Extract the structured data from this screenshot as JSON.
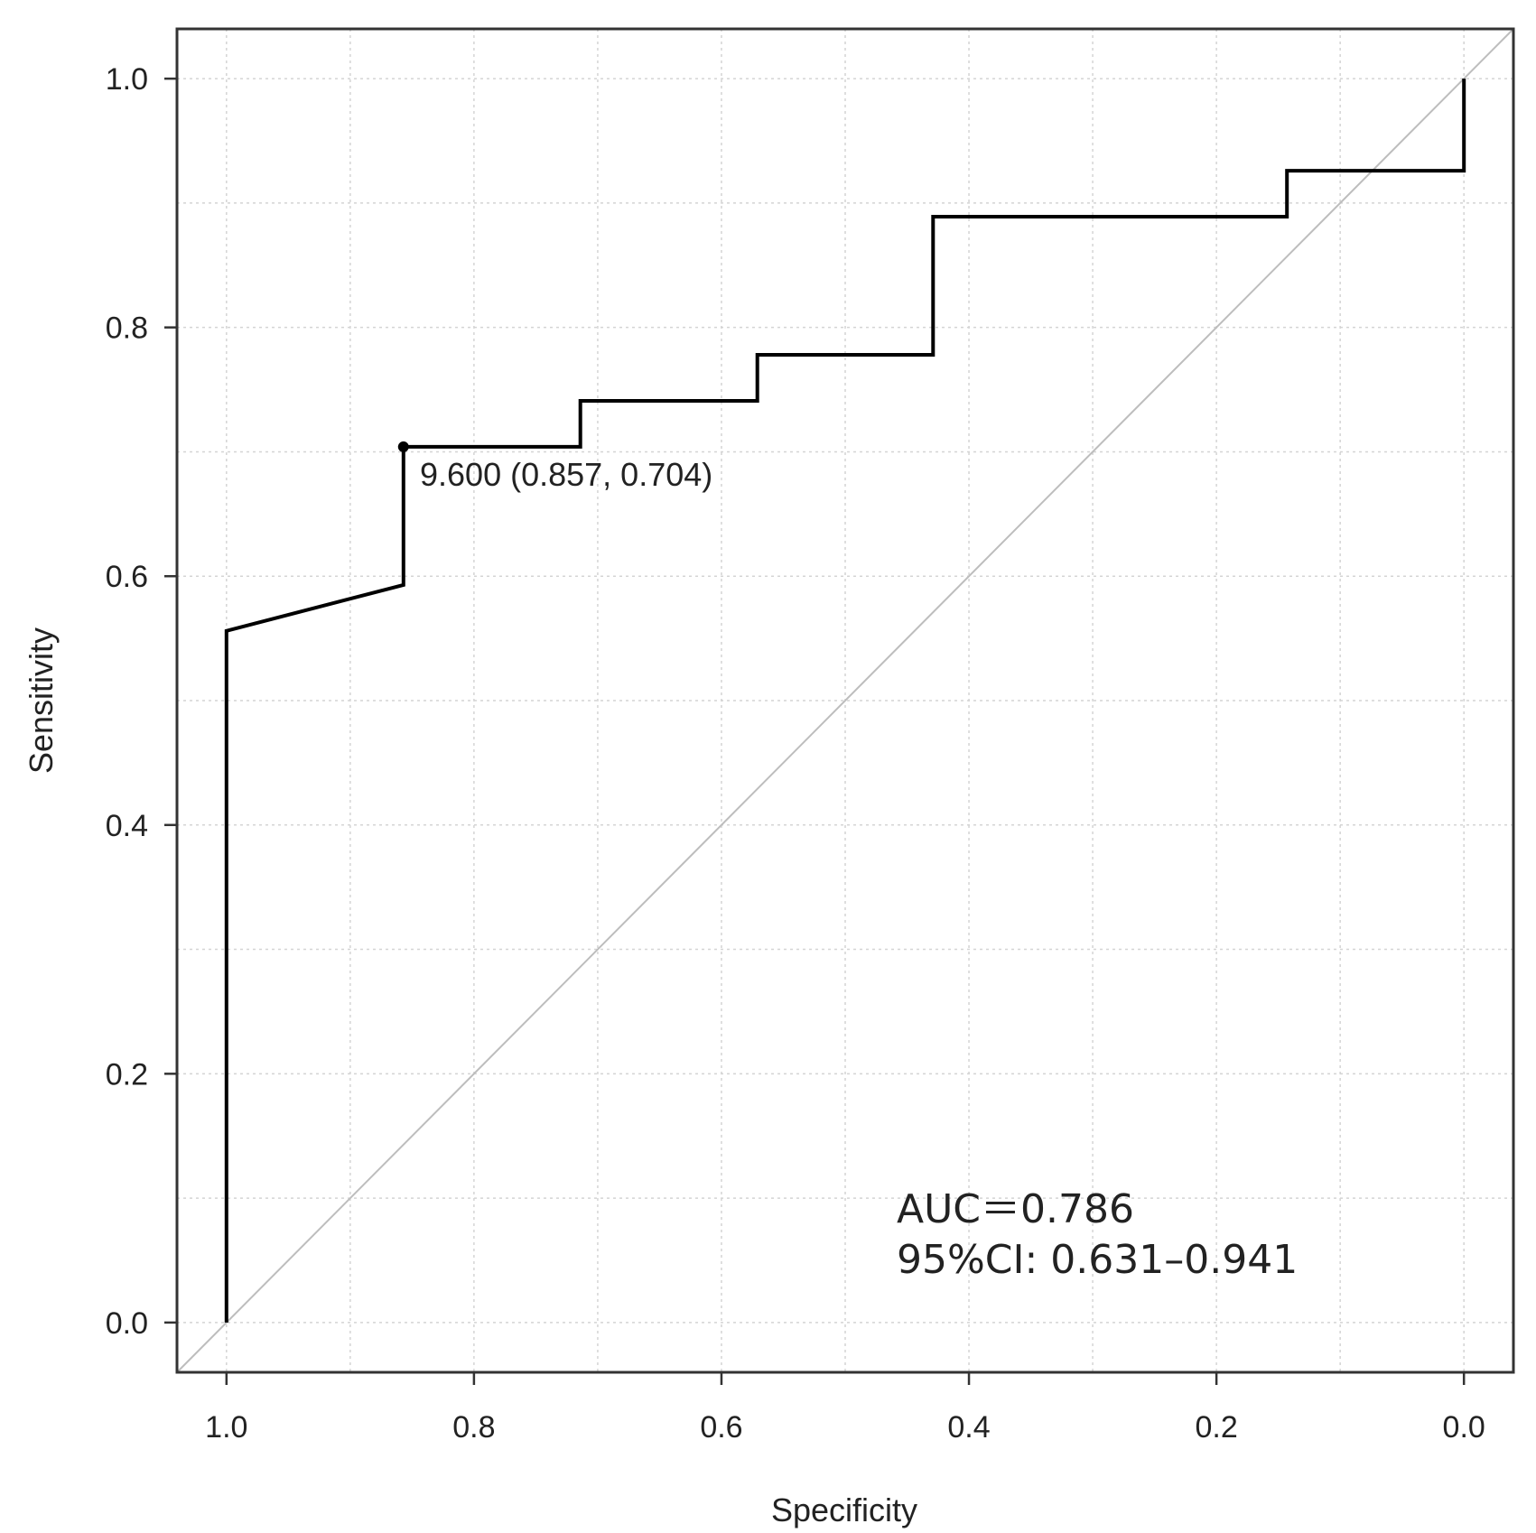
{
  "chart_data": {
    "type": "line",
    "title": "",
    "xlabel": "Specificity",
    "ylabel": "Sensitivity",
    "x_reversed": true,
    "xlim": [
      1.04,
      -0.04
    ],
    "ylim": [
      -0.04,
      1.04
    ],
    "x_ticks": [
      1.0,
      0.8,
      0.6,
      0.4,
      0.2,
      0.0
    ],
    "x_tick_labels": [
      "1.0",
      "0.8",
      "0.6",
      "0.4",
      "0.2",
      "0.0"
    ],
    "y_ticks": [
      0.0,
      0.2,
      0.4,
      0.6,
      0.8,
      1.0
    ],
    "y_tick_labels": [
      "0.0",
      "0.2",
      "0.4",
      "0.6",
      "0.8",
      "1.0"
    ],
    "grid": true,
    "grid_step": 0.1,
    "series": [
      {
        "name": "ROC curve",
        "x": [
          1.0,
          1.0,
          0.857,
          0.857,
          0.714,
          0.714,
          0.571,
          0.571,
          0.429,
          0.429,
          0.143,
          0.143,
          0.0,
          0.0
        ],
        "y": [
          0.0,
          0.556,
          0.593,
          0.704,
          0.704,
          0.741,
          0.741,
          0.778,
          0.778,
          0.889,
          0.889,
          0.926,
          0.926,
          1.0
        ]
      }
    ],
    "reference_line": {
      "name": "chance diagonal",
      "x": [
        1.04,
        -0.04
      ],
      "y": [
        -0.04,
        1.04
      ]
    },
    "annotations": [
      {
        "name": "best threshold",
        "x": 0.857,
        "y": 0.704,
        "text": "9.600 (0.857, 0.704)"
      }
    ],
    "auc_text": "AUC＝0.786",
    "ci_text": "95%CI: 0.631–0.941"
  }
}
